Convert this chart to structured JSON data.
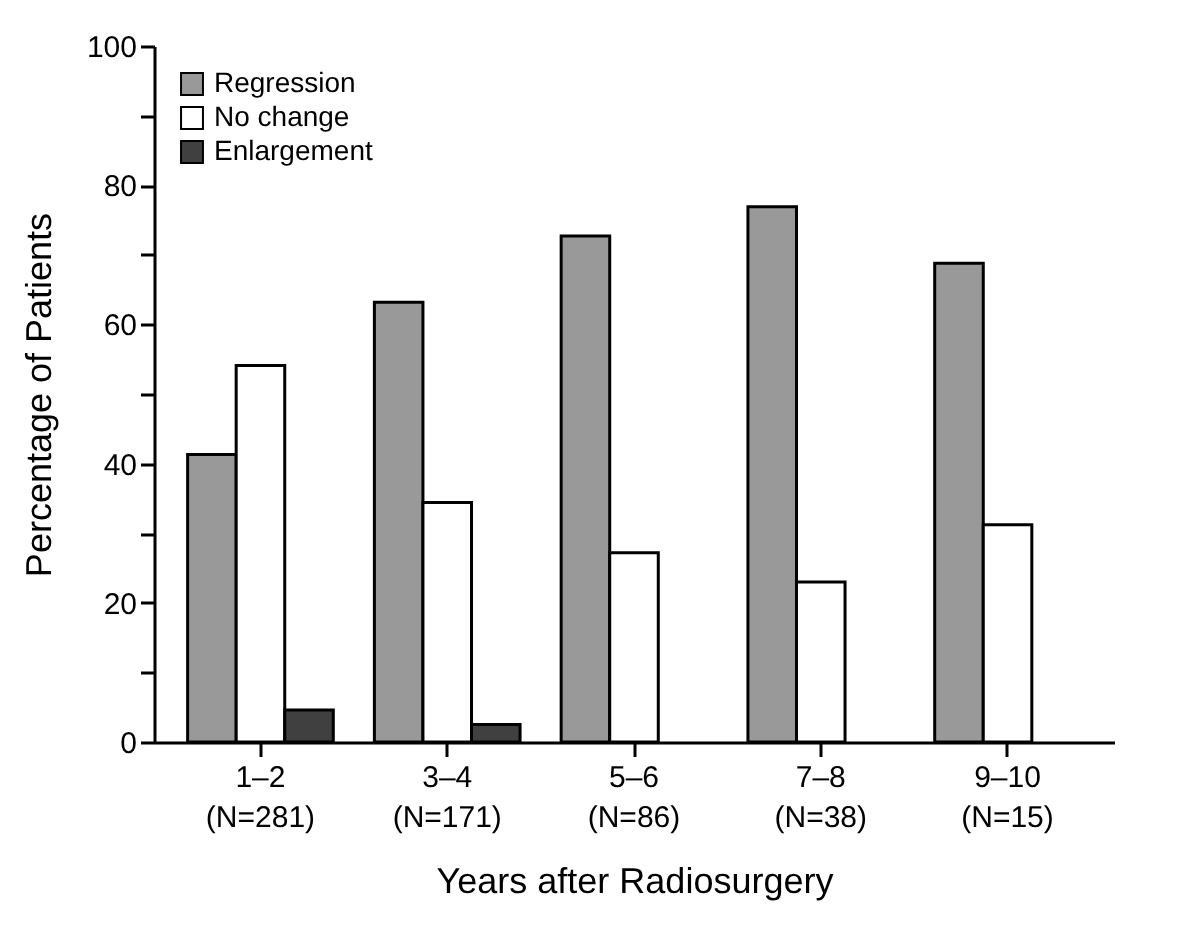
{
  "chart_data": {
    "type": "bar",
    "xlabel": "Years after Radiosurgery",
    "ylabel": "Percentage of Patients",
    "categories": [
      "1–2\n(N=281)",
      "3–4\n(N=171)",
      "5–6\n(N=86)",
      "7–8\n(N=38)",
      "9–10\n(N=15)"
    ],
    "series": [
      {
        "name": "Regression",
        "color": "#999999",
        "values": [
          41.3,
          63.2,
          72.7,
          76.9,
          68.8
        ]
      },
      {
        "name": "No change",
        "color": "#ffffff",
        "values": [
          54.1,
          34.4,
          27.2,
          23.0,
          31.2
        ]
      },
      {
        "name": "Enlargement",
        "color": "#404040",
        "values": [
          4.6,
          2.5,
          null,
          null,
          null
        ]
      }
    ],
    "ylim": [
      0,
      100
    ],
    "yticks": [
      0,
      {
        "value": 10,
        "label": null
      },
      20,
      {
        "value": 30,
        "label": null
      },
      40,
      {
        "value": 50,
        "label": null
      },
      60,
      {
        "value": 70,
        "label": null
      },
      80,
      {
        "value": 90,
        "label": null
      },
      100
    ],
    "grid": false,
    "legend": "top left"
  }
}
